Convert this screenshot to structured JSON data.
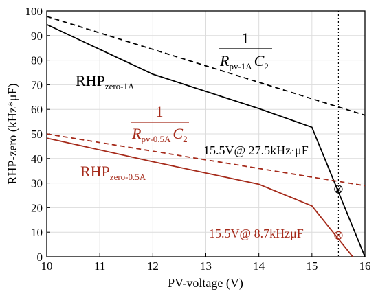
{
  "chart_data": {
    "type": "line",
    "xlabel": "PV-voltage (V)",
    "ylabel": "RHP-zero (kHz*μF)",
    "xlim": [
      10,
      16
    ],
    "ylim": [
      0,
      100
    ],
    "xticks": [
      "10",
      "11",
      "12",
      "13",
      "14",
      "15",
      "16"
    ],
    "yticks": [
      "0",
      "10",
      "20",
      "30",
      "40",
      "50",
      "60",
      "70",
      "80",
      "90",
      "100"
    ],
    "grid": true,
    "vline_x": 15.5,
    "series": [
      {
        "style": "solid",
        "color": "#000000",
        "x": [
          10,
          12,
          14,
          15,
          16
        ],
        "y": [
          94.5,
          74.3,
          60.3,
          52.7,
          0
        ]
      },
      {
        "style": "dashed",
        "color": "#000000",
        "x": [
          10,
          16
        ],
        "y": [
          97.8,
          57.6
        ]
      },
      {
        "style": "solid",
        "color": "#a52a1a",
        "x": [
          10,
          12,
          14,
          15,
          15.77
        ],
        "y": [
          48.3,
          38.7,
          29.5,
          20.7,
          0
        ]
      },
      {
        "style": "dashed",
        "color": "#a52a1a",
        "x": [
          10,
          16
        ],
        "y": [
          50.0,
          28.9
        ]
      }
    ],
    "markers": [
      {
        "x": 15.5,
        "y": 27.5,
        "color": "#000000"
      },
      {
        "x": 15.5,
        "y": 8.7,
        "color": "#a52a1a"
      }
    ],
    "annotations": {
      "black_fraction": {
        "num": "1",
        "r_sub": "pv-1A",
        "c_sub": "2"
      },
      "red_fraction": {
        "num": "1",
        "r_sub": "pv-0.5A",
        "c_sub": "2"
      },
      "black_label": {
        "main": "RHP",
        "sub": "zero-1A"
      },
      "red_label": {
        "main": "RHP",
        "sub": "zero-0.5A"
      },
      "black_point_text": "15.5V@ 27.5kHz·μF",
      "red_point_text": "15.5V@ 8.7kHzμF"
    }
  }
}
